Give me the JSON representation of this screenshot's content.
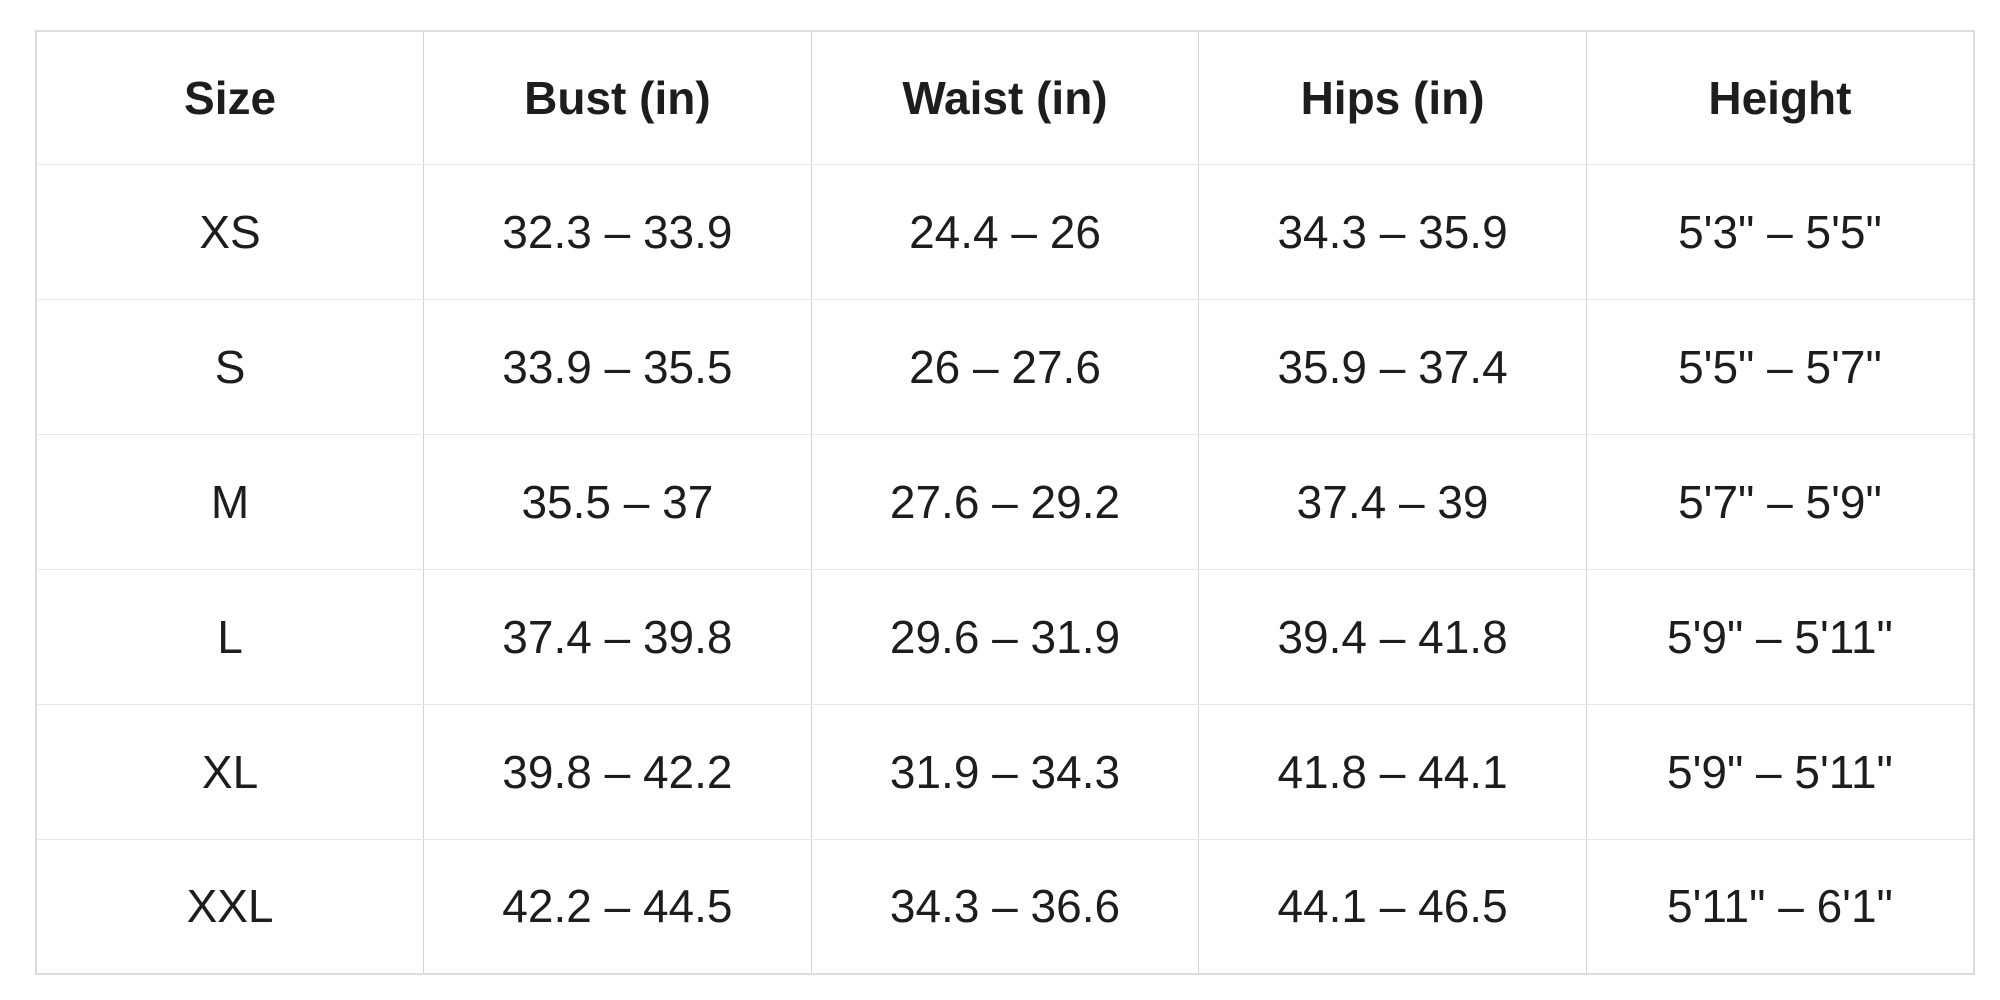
{
  "table": {
    "headers": [
      "Size",
      "Bust (in)",
      "Waist (in)",
      "Hips (in)",
      "Height"
    ],
    "rows": [
      [
        "XS",
        "32.3 – 33.9",
        "24.4 – 26",
        "34.3 – 35.9",
        "5'3\" – 5'5\""
      ],
      [
        "S",
        "33.9 – 35.5",
        "26 – 27.6",
        "35.9 – 37.4",
        "5'5\" – 5'7\""
      ],
      [
        "M",
        "35.5 – 37",
        "27.6 – 29.2",
        "37.4 – 39",
        "5'7\" – 5'9\""
      ],
      [
        "L",
        "37.4 – 39.8",
        "29.6 – 31.9",
        "39.4 – 41.8",
        "5'9\" – 5'11\""
      ],
      [
        "XL",
        "39.8 – 42.2",
        "31.9 – 34.3",
        "41.8 – 44.1",
        "5'9\" – 5'11\""
      ],
      [
        "XXL",
        "42.2 – 44.5",
        "34.3 – 36.6",
        "44.1 – 46.5",
        "5'11\" – 6'1\""
      ]
    ]
  },
  "chart_data": {
    "type": "table",
    "columns": [
      "Size",
      "Bust (in)",
      "Waist (in)",
      "Hips (in)",
      "Height"
    ],
    "rows": [
      {
        "size": "XS",
        "bust_in": "32.3 – 33.9",
        "waist_in": "24.4 – 26",
        "hips_in": "34.3 – 35.9",
        "height": "5'3\" – 5'5\""
      },
      {
        "size": "S",
        "bust_in": "33.9 – 35.5",
        "waist_in": "26 – 27.6",
        "hips_in": "35.9 – 37.4",
        "height": "5'5\" – 5'7\""
      },
      {
        "size": "M",
        "bust_in": "35.5 – 37",
        "waist_in": "27.6 – 29.2",
        "hips_in": "37.4 – 39",
        "height": "5'7\" – 5'9\""
      },
      {
        "size": "L",
        "bust_in": "37.4 – 39.8",
        "waist_in": "29.6 – 31.9",
        "hips_in": "39.4 – 41.8",
        "height": "5'9\" – 5'11\""
      },
      {
        "size": "XL",
        "bust_in": "39.8 – 42.2",
        "waist_in": "31.9 – 34.3",
        "hips_in": "41.8 – 44.1",
        "height": "5'9\" – 5'11\""
      },
      {
        "size": "XXL",
        "bust_in": "42.2 – 44.5",
        "waist_in": "34.3 – 36.6",
        "hips_in": "44.1 – 46.5",
        "height": "5'11\" – 6'1\""
      }
    ],
    "layout_hints": {
      "header_row_bold": true,
      "cell_alignment": "center",
      "grid": "full"
    }
  }
}
